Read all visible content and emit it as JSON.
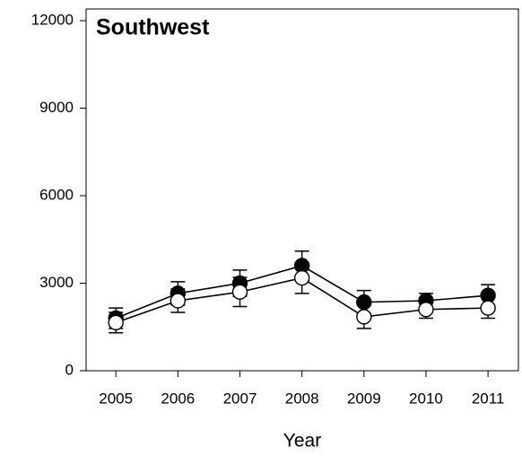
{
  "chart_data": {
    "type": "line",
    "title": "Southwest",
    "x_label": "Year",
    "x": [
      2005,
      2006,
      2007,
      2008,
      2009,
      2010,
      2011
    ],
    "series": [
      {
        "color": "#000000",
        "marker_fill": "#000000",
        "values": [
          1800,
          2650,
          3000,
          3600,
          2350,
          2400,
          2580
        ],
        "errors": [
          350,
          400,
          450,
          500,
          400,
          250,
          370
        ]
      },
      {
        "color": "#000000",
        "marker_fill": "#ffffff",
        "values": [
          1650,
          2400,
          2700,
          3180,
          1850,
          2100,
          2150
        ],
        "errors": [
          350,
          400,
          500,
          530,
          400,
          300,
          350
        ]
      }
    ],
    "xlim": [
      2004.52,
      2011.49
    ],
    "xticks": [
      2005,
      2006,
      2007,
      2008,
      2009,
      2010,
      2011
    ],
    "ylim": [
      0,
      12400
    ],
    "yticks": [
      0,
      3000,
      6000,
      9000,
      12000
    ],
    "grid": false
  }
}
